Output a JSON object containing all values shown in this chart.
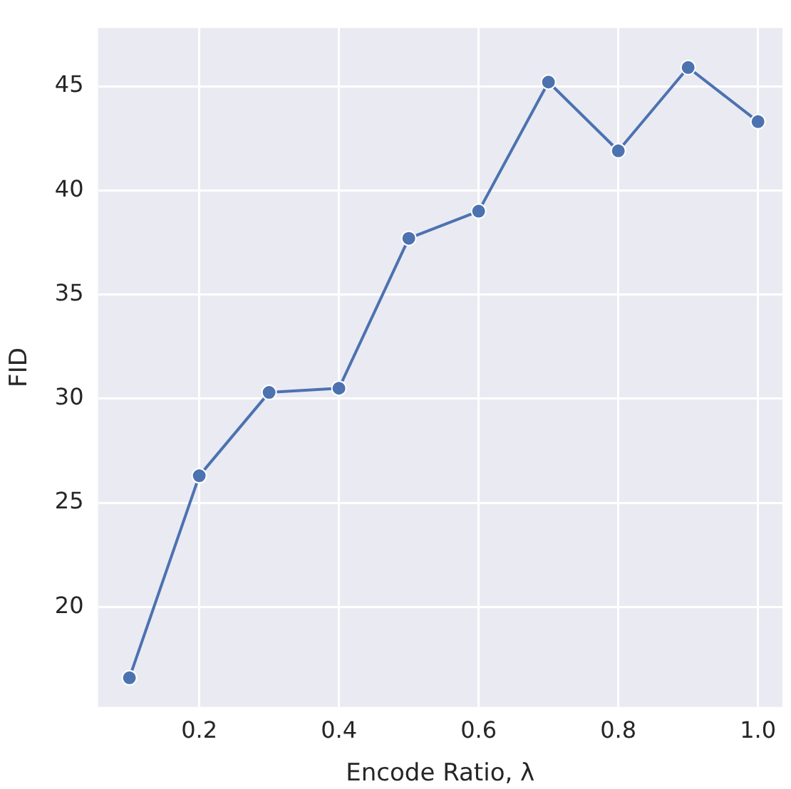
{
  "chart_data": {
    "type": "line",
    "xlabel": "Encode Ratio, λ",
    "ylabel": "FID",
    "x": [
      0.1,
      0.2,
      0.3,
      0.4,
      0.5,
      0.6,
      0.7,
      0.8,
      0.9,
      1.0
    ],
    "series": [
      {
        "color": "#4c72b0",
        "values": [
          16.6,
          26.3,
          30.3,
          30.5,
          37.7,
          39.0,
          45.2,
          41.9,
          45.9,
          43.3
        ]
      }
    ],
    "xlim": [
      0.055,
      1.035
    ],
    "ylim": [
      15.2,
      47.8
    ],
    "xticks": [
      0.2,
      0.4,
      0.6,
      0.8,
      {
        "value": 1,
        "label": "1.0"
      }
    ],
    "yticks": [
      20,
      25,
      30,
      35,
      40,
      45
    ],
    "grid": true,
    "marker": "circle",
    "line_style": "solid",
    "legend": false
  }
}
